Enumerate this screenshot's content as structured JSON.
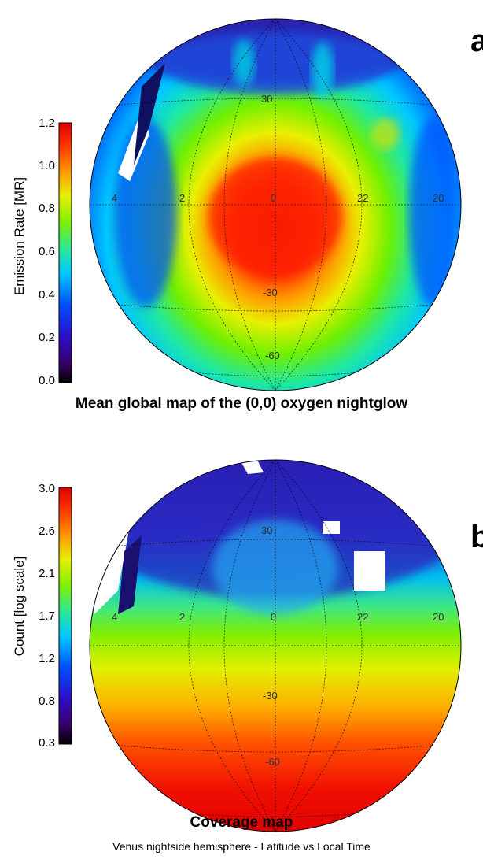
{
  "panel_a": {
    "letter": "a",
    "colorbar_label": "Emission Rate [MR]",
    "colorbar_ticks": [
      "1.2",
      "1.0",
      "0.8",
      "0.6",
      "0.4",
      "0.2",
      "0.0"
    ],
    "caption": "Mean global map of the (0,0) oxygen nightglow",
    "lat_labels": [
      "30",
      "-30",
      "-60"
    ],
    "lon_labels": [
      "4",
      "2",
      "0",
      "22",
      "20"
    ]
  },
  "panel_b": {
    "letter": "b",
    "colorbar_label": "Count [log scale]",
    "colorbar_ticks": [
      "3.0",
      "2.6",
      "2.1",
      "1.7",
      "1.2",
      "0.8",
      "0.3"
    ],
    "caption": "Coverage map",
    "subcaption": "Venus nightside hemisphere - Latitude vs Local Time",
    "lat_labels": [
      "30",
      "-30",
      "-60"
    ],
    "lon_labels": [
      "4",
      "2",
      "0",
      "22",
      "20"
    ]
  },
  "colors": {
    "rainbow": [
      "#000000",
      "#3a0070",
      "#2a10c8",
      "#0050ff",
      "#00c8ff",
      "#30e890",
      "#80f000",
      "#e8f000",
      "#ff9000",
      "#ff3000",
      "#e00000"
    ]
  }
}
